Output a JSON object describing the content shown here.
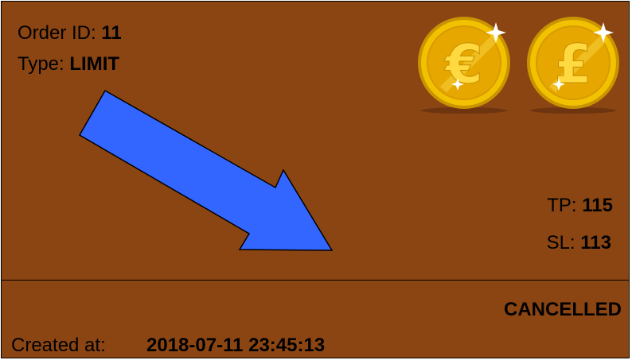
{
  "order": {
    "id_label": "Order ID: ",
    "id_value": "11",
    "type_label": "Type: ",
    "type_value": "LIMIT",
    "tp_label": "TP: ",
    "tp_value": "115",
    "sl_label": "SL: ",
    "sl_value": "113",
    "status": "CANCELLED",
    "created_label": "Created at:",
    "created_value": "2018-07-11 23:45:13"
  },
  "icons": {
    "arrow": "arrow-down-right-icon",
    "coin_1": "euro-coin-icon",
    "coin_2": "pound-coin-icon",
    "coin_1_symbol": "€",
    "coin_2_symbol": "£"
  },
  "colors": {
    "background": "#8b4513",
    "arrow": "#3366ff",
    "coin": "#f2c200"
  }
}
